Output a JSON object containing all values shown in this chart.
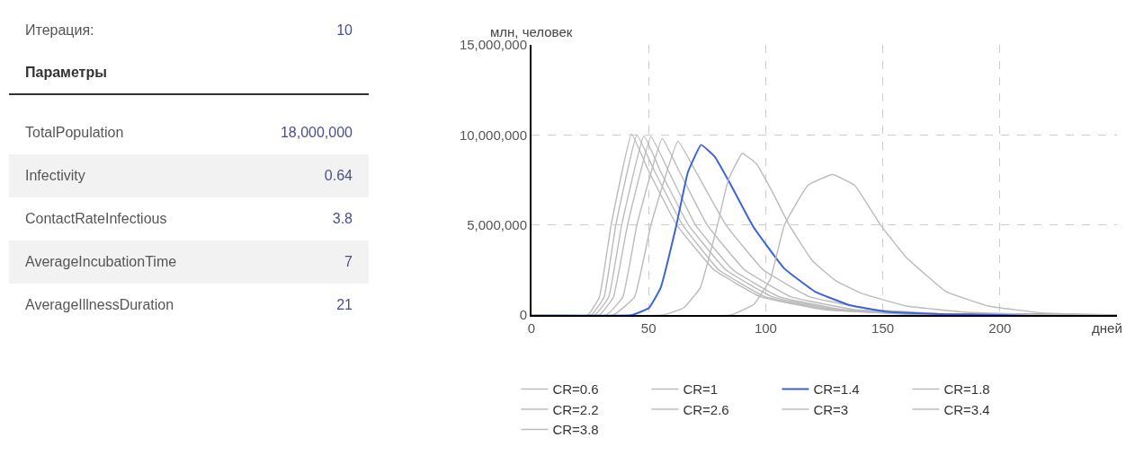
{
  "chart_data": [
    {
      "type": "other",
      "annotations": [
        "Итерация:",
        "10",
        "Параметры",
        "TotalPopulation",
        "18,000,000",
        "Infectivity",
        "0.64",
        "ContactRateInfectious",
        "3.8",
        "AverageIncubationTime",
        "7",
        "AverageIllnessDuration",
        "21"
      ]
    },
    {
      "type": "line",
      "ylabel": "млн, человек",
      "xlabel": "дней",
      "xlim": [
        0,
        250
      ],
      "xticks": [
        0,
        50,
        100,
        150,
        200
      ],
      "ylim": [
        0,
        15000000
      ],
      "yticks": [
        {
          "value": 0,
          "label": "0"
        },
        {
          "value": 5000000,
          "label": "5,000,000"
        },
        {
          "value": 10000000,
          "label": "10,000,000"
        },
        {
          "value": 15000000,
          "label": "15,000,000"
        }
      ],
      "grid": true,
      "legend": "bottom",
      "marker": "none",
      "line_style": "solid",
      "series": [
        {
          "name": "CR=0.6",
          "color": "#bbbbbb",
          "x": [
            0,
            85,
            95,
            102,
            108,
            118,
            128.5,
            138,
            149,
            160,
            177,
            195,
            218,
            250
          ],
          "values": [
            0,
            0,
            600000,
            2000000,
            5000000,
            7200000,
            7800000,
            7200000,
            5000000,
            3200000,
            1300000,
            500000,
            120000,
            0
          ]
        },
        {
          "name": "CR=1",
          "color": "#bbbbbb",
          "x": [
            0,
            56,
            65,
            72,
            79.4,
            84,
            90,
            96,
            103,
            110,
            120,
            130,
            141,
            160,
            186,
            220,
            250
          ],
          "values": [
            0,
            0,
            400000,
            1500000,
            5000000,
            7500000,
            8970000,
            8400000,
            6800000,
            5000000,
            3000000,
            1900000,
            1200000,
            500000,
            150000,
            20000,
            0
          ]
        },
        {
          "name": "CR=1.4",
          "color": "#3f63d8",
          "x": [
            0,
            43,
            50.2,
            55.1,
            61.7,
            66.7,
            72.4,
            78.2,
            84.8,
            94.7,
            107.8,
            121,
            135.8,
            152.3,
            177,
            250
          ],
          "values": [
            0,
            0,
            400000,
            1500000,
            4900000,
            7900000,
            9450000,
            8800000,
            7300000,
            4900000,
            2600000,
            1300000,
            550000,
            170000,
            40000,
            0
          ]
        },
        {
          "name": "CR=1.8",
          "color": "#bbbbbb",
          "x": [
            0,
            35,
            44,
            51,
            62.5,
            70,
            83,
            99,
            119,
            146,
            180,
            250
          ],
          "values": [
            0,
            0,
            1000000,
            5000000,
            9650000,
            8000000,
            5000000,
            2500000,
            1000000,
            300000,
            50000,
            0
          ]
        },
        {
          "name": "CR=2.2",
          "color": "#bbbbbb",
          "x": [
            0,
            32,
            39,
            45,
            55.8,
            63,
            75,
            91,
            111,
            138,
            172,
            250
          ],
          "values": [
            0,
            0,
            1000000,
            5000000,
            9800000,
            8000000,
            5000000,
            2500000,
            1000000,
            300000,
            50000,
            0
          ]
        },
        {
          "name": "CR=2.6",
          "color": "#bbbbbb",
          "x": [
            0,
            29,
            35,
            41,
            51,
            58.5,
            70,
            86,
            106,
            133,
            168,
            250
          ],
          "values": [
            0,
            0,
            1000000,
            5000000,
            9900000,
            8000000,
            5000000,
            2500000,
            1000000,
            300000,
            50000,
            0
          ]
        },
        {
          "name": "CR=3",
          "color": "#bbbbbb",
          "x": [
            0,
            27,
            33,
            38.5,
            48,
            55,
            67,
            83,
            103,
            130,
            165,
            250
          ],
          "values": [
            0,
            0,
            1000000,
            5000000,
            9950000,
            8000000,
            5000000,
            2500000,
            1000000,
            300000,
            50000,
            0
          ]
        },
        {
          "name": "CR=3.4",
          "color": "#bbbbbb",
          "x": [
            0,
            25.5,
            31,
            36,
            45,
            52.5,
            64.5,
            80,
            100,
            127,
            162,
            250
          ],
          "values": [
            0,
            0,
            1000000,
            5000000,
            10000000,
            8000000,
            5000000,
            2500000,
            1000000,
            300000,
            50000,
            0
          ]
        },
        {
          "name": "CR=3.8",
          "color": "#bbbbbb",
          "x": [
            0,
            24,
            29,
            34,
            42.7,
            50,
            62,
            78,
            98,
            125,
            160,
            250
          ],
          "values": [
            0,
            0,
            1000000,
            5000000,
            10050000,
            8000000,
            5000000,
            2500000,
            1000000,
            300000,
            50000,
            0
          ]
        }
      ]
    }
  ]
}
